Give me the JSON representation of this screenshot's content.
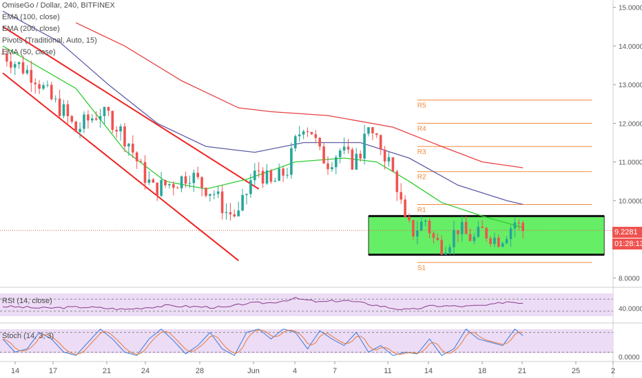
{
  "header": {
    "symbol_line": "OmiseGo / Dollar, 240, BITFINEX",
    "indicators": [
      "EMA (100, close)",
      "EMA (200, close)",
      "Pivots (Traditional, Auto, 15)",
      "EMA (50, close)"
    ]
  },
  "price_tags": {
    "last_price": "9.2281",
    "countdown": "01:28:13"
  },
  "colors": {
    "up": "#26a69a",
    "down": "#ef5350",
    "ema50": "#2ecc2e",
    "ema100": "#5c5ca8",
    "ema200": "#e84040",
    "pivot": "#f0883a",
    "box": "#66ee66",
    "channel": "#ee2222",
    "panel_bg": "#ecdcf6",
    "rsi_line": "#8a3a8a",
    "stoch_k": "#3a7ad8",
    "stoch_d": "#e87a3a"
  },
  "chart_data": [
    {
      "type": "candlestick",
      "title": "OmiseGo / Dollar, 240, BITFINEX",
      "x_ticks": [
        "14",
        "17",
        "21",
        "24",
        "28",
        "Jun",
        "4",
        "7",
        "11",
        "14",
        "18",
        "21",
        "25",
        "2"
      ],
      "y_ticks": [
        "15.0000",
        "14.0000",
        "13.0000",
        "12.0000",
        "11.0000",
        "10.0000",
        "8.0000"
      ],
      "ylim": [
        7.9,
        15.1
      ],
      "price_path": [
        [
          0,
          13.8
        ],
        [
          4,
          13.5
        ],
        [
          8,
          13.2
        ],
        [
          12,
          12.6
        ],
        [
          15,
          12.3
        ],
        [
          18,
          11.8
        ],
        [
          20,
          12.0
        ],
        [
          24,
          12.3
        ],
        [
          26,
          12.2
        ],
        [
          29,
          11.8
        ],
        [
          31,
          11.5
        ],
        [
          34,
          10.8
        ],
        [
          37,
          10.3
        ],
        [
          40,
          10.4
        ],
        [
          43,
          10.5
        ],
        [
          46,
          10.7
        ],
        [
          49,
          10.4
        ],
        [
          52,
          10.2
        ],
        [
          55,
          9.7
        ],
        [
          58,
          9.6
        ],
        [
          61,
          10.5
        ],
        [
          63,
          10.8
        ],
        [
          66,
          10.4
        ],
        [
          68,
          10.6
        ],
        [
          70,
          10.8
        ],
        [
          72,
          11.5
        ],
        [
          74,
          12.0
        ],
        [
          76,
          11.8
        ],
        [
          78,
          11.2
        ],
        [
          80,
          11.0
        ],
        [
          83,
          11.3
        ],
        [
          86,
          11.0
        ],
        [
          88,
          11.2
        ],
        [
          89,
          11.9
        ],
        [
          91,
          11.7
        ],
        [
          93,
          11.4
        ],
        [
          95,
          11.0
        ],
        [
          97,
          10.4
        ],
        [
          99,
          9.4
        ],
        [
          101,
          9.2
        ],
        [
          104,
          9.5
        ],
        [
          106,
          9.0
        ],
        [
          108,
          8.8
        ],
        [
          110,
          9.0
        ],
        [
          112,
          9.3
        ],
        [
          114,
          9.1
        ],
        [
          116,
          9.0
        ],
        [
          118,
          9.2
        ],
        [
          120,
          9.1
        ],
        [
          122,
          8.95
        ],
        [
          124,
          9.2
        ],
        [
          126,
          9.45
        ],
        [
          128,
          9.23
        ]
      ],
      "price_bands": [
        [
          0,
          14.6,
          13.4
        ],
        [
          5,
          13.9,
          12.8
        ],
        [
          10,
          13.4,
          12.2
        ],
        [
          20,
          12.8,
          11.3
        ],
        [
          28,
          12.2,
          10.6
        ],
        [
          34,
          11.7,
          9.9
        ],
        [
          40,
          11.0,
          9.7
        ],
        [
          48,
          10.9,
          9.7
        ],
        [
          55,
          10.3,
          9.4
        ],
        [
          60,
          11.0,
          9.8
        ],
        [
          66,
          11.0,
          10.0
        ],
        [
          72,
          12.3,
          10.6
        ],
        [
          76,
          12.4,
          10.8
        ],
        [
          82,
          11.8,
          10.6
        ],
        [
          88,
          12.1,
          10.9
        ],
        [
          95,
          11.4,
          10.5
        ],
        [
          99,
          10.2,
          9.0
        ],
        [
          104,
          9.6,
          8.6
        ],
        [
          112,
          9.6,
          8.6
        ],
        [
          120,
          9.6,
          8.8
        ],
        [
          128,
          9.6,
          8.8
        ]
      ],
      "ema50": [
        [
          0,
          14.0
        ],
        [
          18,
          12.9
        ],
        [
          30,
          11.3
        ],
        [
          40,
          10.5
        ],
        [
          50,
          10.3
        ],
        [
          60,
          10.55
        ],
        [
          72,
          11.0
        ],
        [
          84,
          11.1
        ],
        [
          92,
          11.0
        ],
        [
          100,
          10.5
        ],
        [
          108,
          9.95
        ],
        [
          118,
          9.6
        ],
        [
          128,
          9.3
        ]
      ],
      "ema100": [
        [
          0,
          14.9
        ],
        [
          14,
          14.1
        ],
        [
          26,
          13.0
        ],
        [
          38,
          12.0
        ],
        [
          50,
          11.4
        ],
        [
          62,
          11.25
        ],
        [
          74,
          11.5
        ],
        [
          88,
          11.5
        ],
        [
          100,
          11.1
        ],
        [
          112,
          10.4
        ],
        [
          124,
          10.0
        ],
        [
          128,
          9.9
        ]
      ],
      "ema200": [
        [
          18,
          14.6
        ],
        [
          30,
          14.0
        ],
        [
          44,
          13.1
        ],
        [
          58,
          12.4
        ],
        [
          66,
          12.3
        ],
        [
          80,
          12.2
        ],
        [
          96,
          11.9
        ],
        [
          108,
          11.4
        ],
        [
          118,
          11.0
        ],
        [
          128,
          10.85
        ]
      ],
      "pivots": [
        {
          "label": "R5",
          "value": 12.6
        },
        {
          "label": "R4",
          "value": 12.0
        },
        {
          "label": "R3",
          "value": 11.4
        },
        {
          "label": "R2",
          "value": 10.75
        },
        {
          "label": "R1",
          "value": 9.9
        },
        {
          "label": "S1",
          "value": 8.4
        }
      ],
      "pivot_range": [
        102,
        145
      ],
      "box": {
        "x_range": [
          90,
          148
        ],
        "y_range": [
          8.6,
          9.6
        ]
      },
      "channel_upper": [
        [
          0,
          14.5
        ],
        [
          63,
          10.3
        ]
      ],
      "channel_lower": [
        [
          0,
          13.3
        ],
        [
          58,
          8.45
        ]
      ],
      "last_price": 9.2281
    },
    {
      "type": "line",
      "title": "RSI (14, close)",
      "y_ticks": [
        "40.0000"
      ],
      "ylim": [
        0,
        100
      ],
      "band": [
        30,
        70
      ],
      "anchors": [
        [
          0,
          46
        ],
        [
          10,
          40
        ],
        [
          20,
          44
        ],
        [
          30,
          36
        ],
        [
          40,
          48
        ],
        [
          55,
          42
        ],
        [
          60,
          56
        ],
        [
          66,
          58
        ],
        [
          72,
          72
        ],
        [
          78,
          60
        ],
        [
          84,
          66
        ],
        [
          90,
          54
        ],
        [
          96,
          40
        ],
        [
          100,
          34
        ],
        [
          106,
          48
        ],
        [
          114,
          46
        ],
        [
          120,
          50
        ],
        [
          124,
          62
        ],
        [
          128,
          58
        ]
      ]
    },
    {
      "type": "line",
      "title": "Stoch (14, 3, 3)",
      "y_ticks": [
        "0.0000"
      ],
      "ylim": [
        0,
        100
      ],
      "band": [
        20,
        80
      ],
      "k_anchors": [
        [
          0,
          60
        ],
        [
          3,
          20
        ],
        [
          6,
          30
        ],
        [
          9,
          80
        ],
        [
          12,
          60
        ],
        [
          15,
          20
        ],
        [
          18,
          10
        ],
        [
          21,
          50
        ],
        [
          24,
          90
        ],
        [
          27,
          60
        ],
        [
          30,
          20
        ],
        [
          33,
          10
        ],
        [
          36,
          60
        ],
        [
          39,
          90
        ],
        [
          42,
          55
        ],
        [
          45,
          15
        ],
        [
          48,
          40
        ],
        [
          51,
          80
        ],
        [
          54,
          30
        ],
        [
          57,
          10
        ],
        [
          60,
          80
        ],
        [
          63,
          90
        ],
        [
          66,
          60
        ],
        [
          69,
          90
        ],
        [
          72,
          80
        ],
        [
          75,
          30
        ],
        [
          78,
          85
        ],
        [
          81,
          60
        ],
        [
          84,
          40
        ],
        [
          87,
          80
        ],
        [
          90,
          20
        ],
        [
          93,
          40
        ],
        [
          96,
          10
        ],
        [
          99,
          20
        ],
        [
          102,
          15
        ],
        [
          105,
          60
        ],
        [
          108,
          10
        ],
        [
          111,
          30
        ],
        [
          114,
          90
        ],
        [
          117,
          60
        ],
        [
          120,
          50
        ],
        [
          123,
          40
        ],
        [
          126,
          90
        ],
        [
          128,
          70
        ]
      ]
    }
  ]
}
